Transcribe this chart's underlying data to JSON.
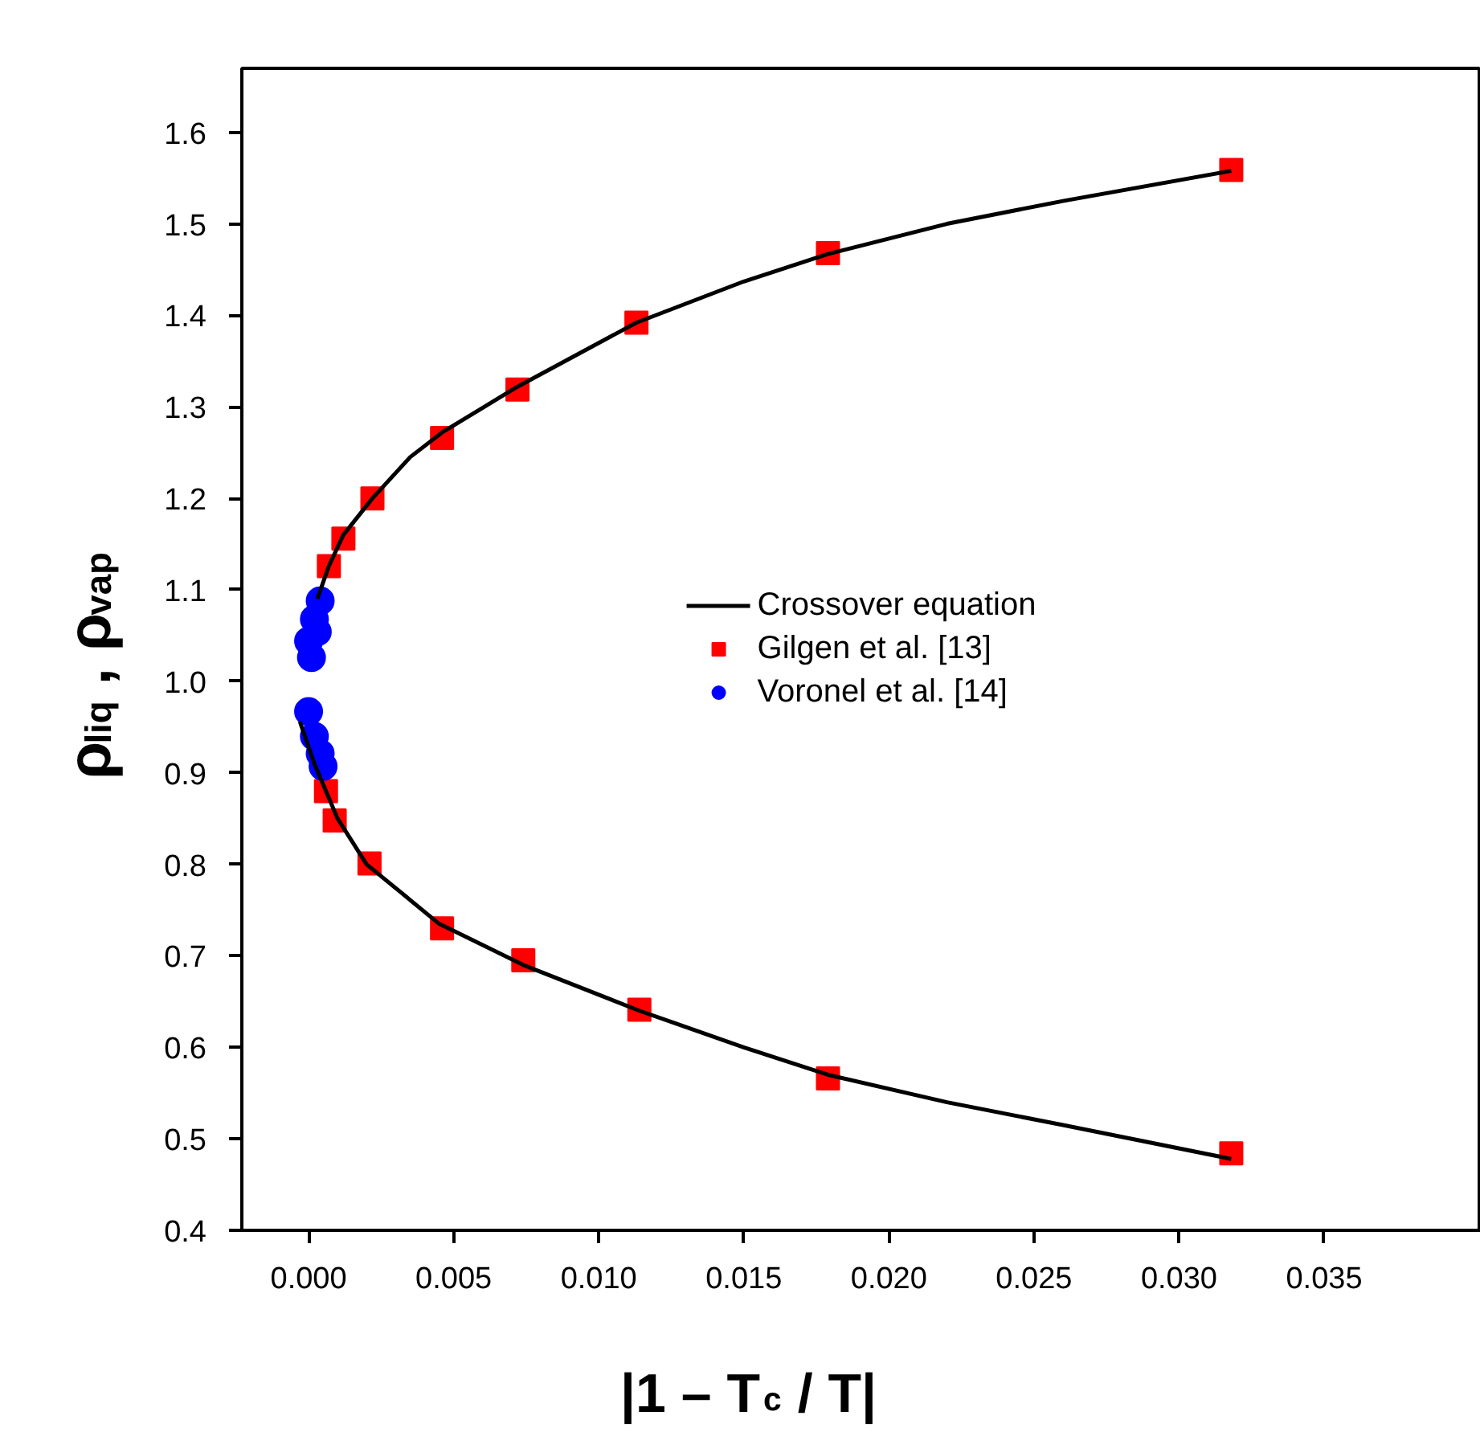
{
  "chart_data": {
    "type": "scatter",
    "xlabel": "|1 – T$_{c}$ / T|",
    "ylabel": "ρ$_{liq}$ , ρ$_{vap}$",
    "xlim": [
      -0.0023,
      0.0404
    ],
    "ylim": [
      0.4,
      1.67
    ],
    "xticks": [
      {
        "value": 0.0,
        "label": "0.000"
      },
      {
        "value": 0.005,
        "label": "0.005"
      },
      {
        "value": 0.01,
        "label": "0.010"
      },
      {
        "value": 0.015,
        "label": "0.015"
      },
      {
        "value": 0.02,
        "label": "0.020"
      },
      {
        "value": 0.025,
        "label": "0.025"
      },
      {
        "value": 0.03,
        "label": "0.030"
      },
      {
        "value": 0.035,
        "label": "0.035"
      }
    ],
    "yticks": [
      0.4,
      0.5,
      0.6,
      0.7,
      0.8,
      0.9,
      {
        "value": 1.0,
        "label": "1.0"
      },
      1.1,
      1.2,
      1.3,
      1.4,
      1.5,
      1.6
    ],
    "grid": false,
    "legend": "center",
    "series": [
      {
        "name": "Crossover equation",
        "type": "line",
        "color": "#000000",
        "line_style": "solid",
        "x": [
          0.0003,
          0.0007,
          0.0012,
          0.0022,
          0.0035,
          0.0046,
          0.0072,
          0.0113,
          0.015,
          0.0179,
          0.022,
          0.026,
          0.0318,
          null,
          -0.0003,
          0.0002,
          0.0006,
          0.001,
          0.002,
          0.0045,
          0.0074,
          0.0114,
          0.015,
          0.0179,
          0.022,
          0.026,
          0.0318
        ],
        "values": [
          1.09,
          1.126,
          1.16,
          1.2,
          1.245,
          1.272,
          1.322,
          1.392,
          1.437,
          1.467,
          1.5,
          1.525,
          1.558,
          null,
          0.956,
          0.91,
          0.88,
          0.85,
          0.8,
          0.735,
          0.69,
          0.64,
          0.6,
          0.57,
          0.54,
          0.515,
          0.478
        ]
      },
      {
        "name": "Gilgen et al. [13]",
        "marker": "square",
        "color": "#ff0000",
        "x": [
          0.0318,
          0.0179,
          0.0113,
          0.0072,
          0.0046,
          0.0022,
          0.0012,
          0.0007,
          0.0006,
          0.0009,
          0.0021,
          0.0046,
          0.0074,
          0.0114,
          0.0179,
          0.0318
        ],
        "values": [
          1.559,
          1.468,
          1.392,
          1.319,
          1.266,
          1.2,
          1.156,
          1.126,
          0.88,
          0.848,
          0.801,
          0.73,
          0.695,
          0.641,
          0.566,
          0.484
        ]
      },
      {
        "name": "Voronel et al. [14]",
        "marker": "circle",
        "color": "#0000ff",
        "x": [
          0.0004,
          0.0002,
          0.0003,
          0.0,
          0.0001,
          0.0,
          0.0002,
          0.0004,
          0.0005
        ],
        "values": [
          1.088,
          1.068,
          1.054,
          1.044,
          1.026,
          0.967,
          0.94,
          0.921,
          0.907
        ]
      }
    ]
  }
}
